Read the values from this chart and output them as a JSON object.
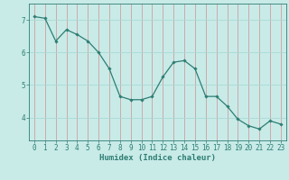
{
  "x": [
    0,
    1,
    2,
    3,
    4,
    5,
    6,
    7,
    8,
    9,
    10,
    11,
    12,
    13,
    14,
    15,
    16,
    17,
    18,
    19,
    20,
    21,
    22,
    23
  ],
  "y": [
    7.1,
    7.05,
    6.35,
    6.7,
    6.55,
    6.35,
    6.0,
    5.5,
    4.65,
    4.55,
    4.55,
    4.65,
    5.25,
    5.7,
    5.75,
    5.5,
    4.65,
    4.65,
    4.35,
    3.95,
    3.75,
    3.65,
    3.9,
    3.8
  ],
  "line_color": "#2e7d72",
  "marker": "D",
  "marker_size": 1.8,
  "bg_color": "#c8ebe8",
  "grid_color": "#aad8d3",
  "grid_color_red": "#e8b0b0",
  "axis_color": "#2e7d72",
  "xlabel": "Humidex (Indice chaleur)",
  "xlabel_fontsize": 6.5,
  "tick_fontsize": 5.5,
  "yticks": [
    4,
    5,
    6,
    7
  ],
  "xticks": [
    0,
    1,
    2,
    3,
    4,
    5,
    6,
    7,
    8,
    9,
    10,
    11,
    12,
    13,
    14,
    15,
    16,
    17,
    18,
    19,
    20,
    21,
    22,
    23
  ],
  "xlim": [
    -0.5,
    23.5
  ],
  "ylim": [
    3.3,
    7.5
  ]
}
